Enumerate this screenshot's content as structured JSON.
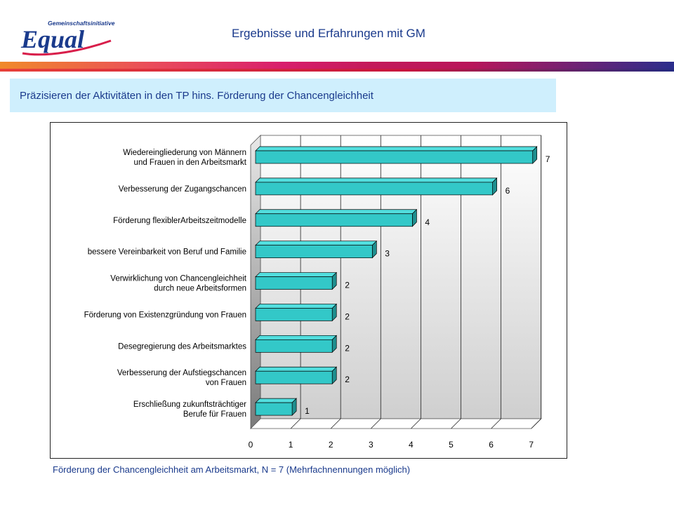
{
  "header": {
    "logo_text": "Equal",
    "logo_subtext": "Gemeinschaftsinitiative",
    "title": "Ergebnisse und Erfahrungen mit GM"
  },
  "subtitle": "Präzisieren der Aktivitäten in den TP hins. Förderung der Chancengleichheit",
  "caption": "Förderung der Chancengleichheit am Arbeitsmarkt, N = 7 (Mehrfachnennungen möglich)",
  "colors": {
    "bar_face": "#33c8c8",
    "bar_top": "#52dede",
    "bar_side": "#1f8f8f",
    "title_blue": "#1a3a8c"
  },
  "chart_data": {
    "type": "bar",
    "orientation": "horizontal",
    "style": "3d",
    "categories": [
      [
        "Wiedereingliederung von Männern",
        "und Frauen in den Arbeitsmarkt"
      ],
      [
        "Verbesserung der Zugangschancen"
      ],
      [
        "Förderung flexiblerArbeitszeitmodelle"
      ],
      [
        "bessere Vereinbarkeit von Beruf und Familie"
      ],
      [
        "Verwirklichung von Chancengleichheit",
        "durch neue Arbeitsformen"
      ],
      [
        "Förderung von Existenzgründung von Frauen"
      ],
      [
        "Desegregierung des Arbeitsmarktes"
      ],
      [
        "Verbesserung der Aufstiegschancen",
        "von Frauen"
      ],
      [
        "Erschließung zukunftsträchtiger",
        "Berufe für Frauen"
      ]
    ],
    "values": [
      7,
      6,
      4,
      3,
      2,
      2,
      2,
      2,
      1
    ],
    "xlim": [
      0,
      7
    ],
    "xticks": [
      "0",
      "1",
      "2",
      "3",
      "4",
      "5",
      "6",
      "7"
    ],
    "grid": true,
    "legend": "none"
  }
}
